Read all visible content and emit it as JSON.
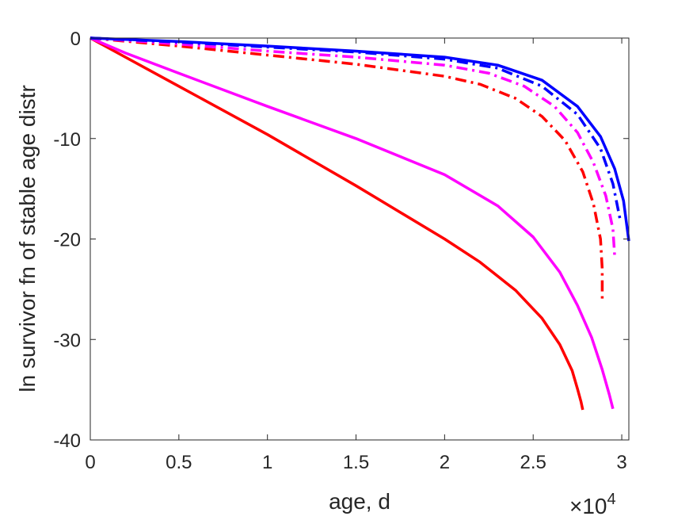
{
  "chart_data": {
    "type": "line",
    "title": "",
    "xlabel": "age, d",
    "ylabel": "ln survivor fn of stable age distr",
    "x_exponent_label": {
      "base": "×10",
      "exp": "4"
    },
    "xlim": [
      0,
      30400
    ],
    "ylim": [
      -40,
      0
    ],
    "xticks": [
      0,
      5000,
      10000,
      15000,
      20000,
      25000,
      30000
    ],
    "xtick_labels": [
      "0",
      "0.5",
      "1",
      "1.5",
      "2",
      "2.5",
      "3"
    ],
    "yticks": [
      0,
      -10,
      -20,
      -30,
      -40
    ],
    "ytick_labels": [
      "0",
      "-10",
      "-20",
      "-30",
      "-40"
    ],
    "grid": false,
    "legend": "none",
    "series": [
      {
        "color": "#ff0000",
        "dash": "solid",
        "points": [
          [
            0,
            0
          ],
          [
            5000,
            -4.8
          ],
          [
            10000,
            -9.6
          ],
          [
            15000,
            -14.7
          ],
          [
            20000,
            -20
          ],
          [
            22000,
            -22.3
          ],
          [
            24000,
            -25.1
          ],
          [
            25500,
            -27.9
          ],
          [
            26500,
            -30.5
          ],
          [
            27200,
            -33.1
          ],
          [
            27500,
            -34.9
          ],
          [
            27700,
            -36.2
          ],
          [
            27800,
            -37
          ]
        ]
      },
      {
        "color": "#ff00ff",
        "dash": "solid",
        "points": [
          [
            0,
            0
          ],
          [
            2000,
            -1.5
          ],
          [
            5000,
            -3.5
          ],
          [
            10000,
            -6.8
          ],
          [
            15000,
            -10
          ],
          [
            20000,
            -13.6
          ],
          [
            23000,
            -16.7
          ],
          [
            25000,
            -19.8
          ],
          [
            26500,
            -23.3
          ],
          [
            27500,
            -26.6
          ],
          [
            28300,
            -29.8
          ],
          [
            28900,
            -33
          ],
          [
            29300,
            -35.5
          ],
          [
            29500,
            -36.9
          ]
        ]
      },
      {
        "color": "#ff0000",
        "dash": "dashdot",
        "points": [
          [
            0,
            0
          ],
          [
            5000,
            -0.8
          ],
          [
            10000,
            -1.7
          ],
          [
            15000,
            -2.6
          ],
          [
            20000,
            -3.8
          ],
          [
            22000,
            -4.6
          ],
          [
            24000,
            -6
          ],
          [
            25500,
            -7.8
          ],
          [
            26800,
            -10.2
          ],
          [
            27800,
            -13.3
          ],
          [
            28400,
            -16.5
          ],
          [
            28800,
            -20
          ],
          [
            28900,
            -23
          ],
          [
            28900,
            -26.3
          ]
        ]
      },
      {
        "color": "#ff00ff",
        "dash": "dashdot",
        "points": [
          [
            0,
            0
          ],
          [
            5000,
            -0.6
          ],
          [
            10000,
            -1.3
          ],
          [
            15000,
            -1.9
          ],
          [
            20000,
            -2.7
          ],
          [
            22500,
            -3.5
          ],
          [
            24500,
            -4.8
          ],
          [
            26200,
            -6.8
          ],
          [
            27500,
            -9.4
          ],
          [
            28400,
            -12.4
          ],
          [
            29100,
            -15.7
          ],
          [
            29500,
            -19
          ],
          [
            29600,
            -21.7
          ]
        ]
      },
      {
        "color": "#0000ff",
        "dash": "dashdot",
        "points": [
          [
            0,
            0
          ],
          [
            5000,
            -0.4
          ],
          [
            10000,
            -0.9
          ],
          [
            15000,
            -1.4
          ],
          [
            20000,
            -2.1
          ],
          [
            23000,
            -3
          ],
          [
            25500,
            -4.8
          ],
          [
            27500,
            -7.6
          ],
          [
            28800,
            -11
          ],
          [
            29500,
            -14.5
          ],
          [
            29900,
            -18
          ]
        ]
      },
      {
        "color": "#0000ff",
        "dash": "solid",
        "points": [
          [
            0,
            0
          ],
          [
            5000,
            -0.35
          ],
          [
            10000,
            -0.8
          ],
          [
            15000,
            -1.3
          ],
          [
            20000,
            -1.9
          ],
          [
            23000,
            -2.7
          ],
          [
            25500,
            -4.2
          ],
          [
            27500,
            -6.8
          ],
          [
            28800,
            -9.8
          ],
          [
            29600,
            -13
          ],
          [
            30100,
            -16.2
          ],
          [
            30400,
            -20.2
          ]
        ]
      }
    ]
  }
}
